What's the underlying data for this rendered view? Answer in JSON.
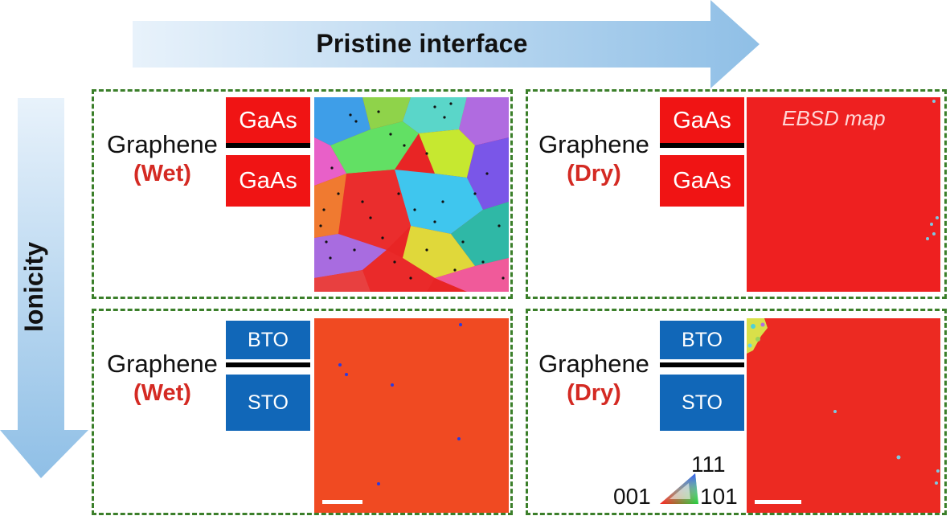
{
  "header": {
    "title": "Pristine interface"
  },
  "side": {
    "label": "Ionicity"
  },
  "panels": [
    {
      "material": "Graphene",
      "condition": "(Wet)",
      "top_layer": "GaAs",
      "bottom_layer": "GaAs"
    },
    {
      "material": "Graphene",
      "condition": "(Dry)",
      "top_layer": "GaAs",
      "bottom_layer": "GaAs",
      "map_label": "EBSD map"
    },
    {
      "material": "Graphene",
      "condition": "(Wet)",
      "top_layer": "BTO",
      "bottom_layer": "STO"
    },
    {
      "material": "Graphene",
      "condition": "(Dry)",
      "top_layer": "BTO",
      "bottom_layer": "STO"
    }
  ],
  "legend": {
    "top": "111",
    "left": "001",
    "right": "101"
  },
  "colors": {
    "arrow": "#a9cdeb",
    "frame": "#3b7f2a",
    "condition_text": "#d42a23",
    "gaas_block": "#f01414",
    "oxide_block": "#1167b8",
    "map_red": "#ee2020",
    "map_orange": "#f04a22"
  }
}
